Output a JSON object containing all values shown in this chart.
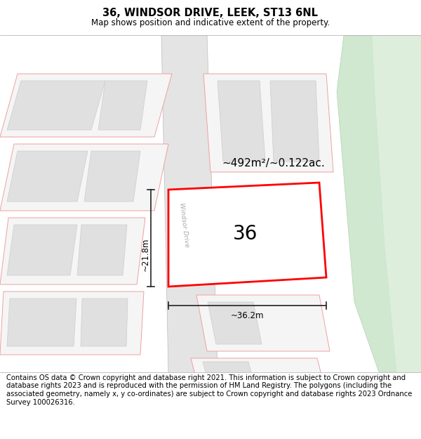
{
  "title": "36, WINDSOR DRIVE, LEEK, ST13 6NL",
  "subtitle": "Map shows position and indicative extent of the property.",
  "footer": "Contains OS data © Crown copyright and database right 2021. This information is subject to Crown copyright and database rights 2023 and is reproduced with the permission of HM Land Registry. The polygons (including the associated geometry, namely x, y co-ordinates) are subject to Crown copyright and database rights 2023 Ordnance Survey 100026316.",
  "area_label": "~492m²/~0.122ac.",
  "width_label": "~36.2m",
  "height_label": "~21.8m",
  "number_label": "36",
  "road_label": "Windsor Drive",
  "dim_line_color": "#222222",
  "title_fontsize": 10.5,
  "subtitle_fontsize": 8.5,
  "footer_fontsize": 7.2
}
